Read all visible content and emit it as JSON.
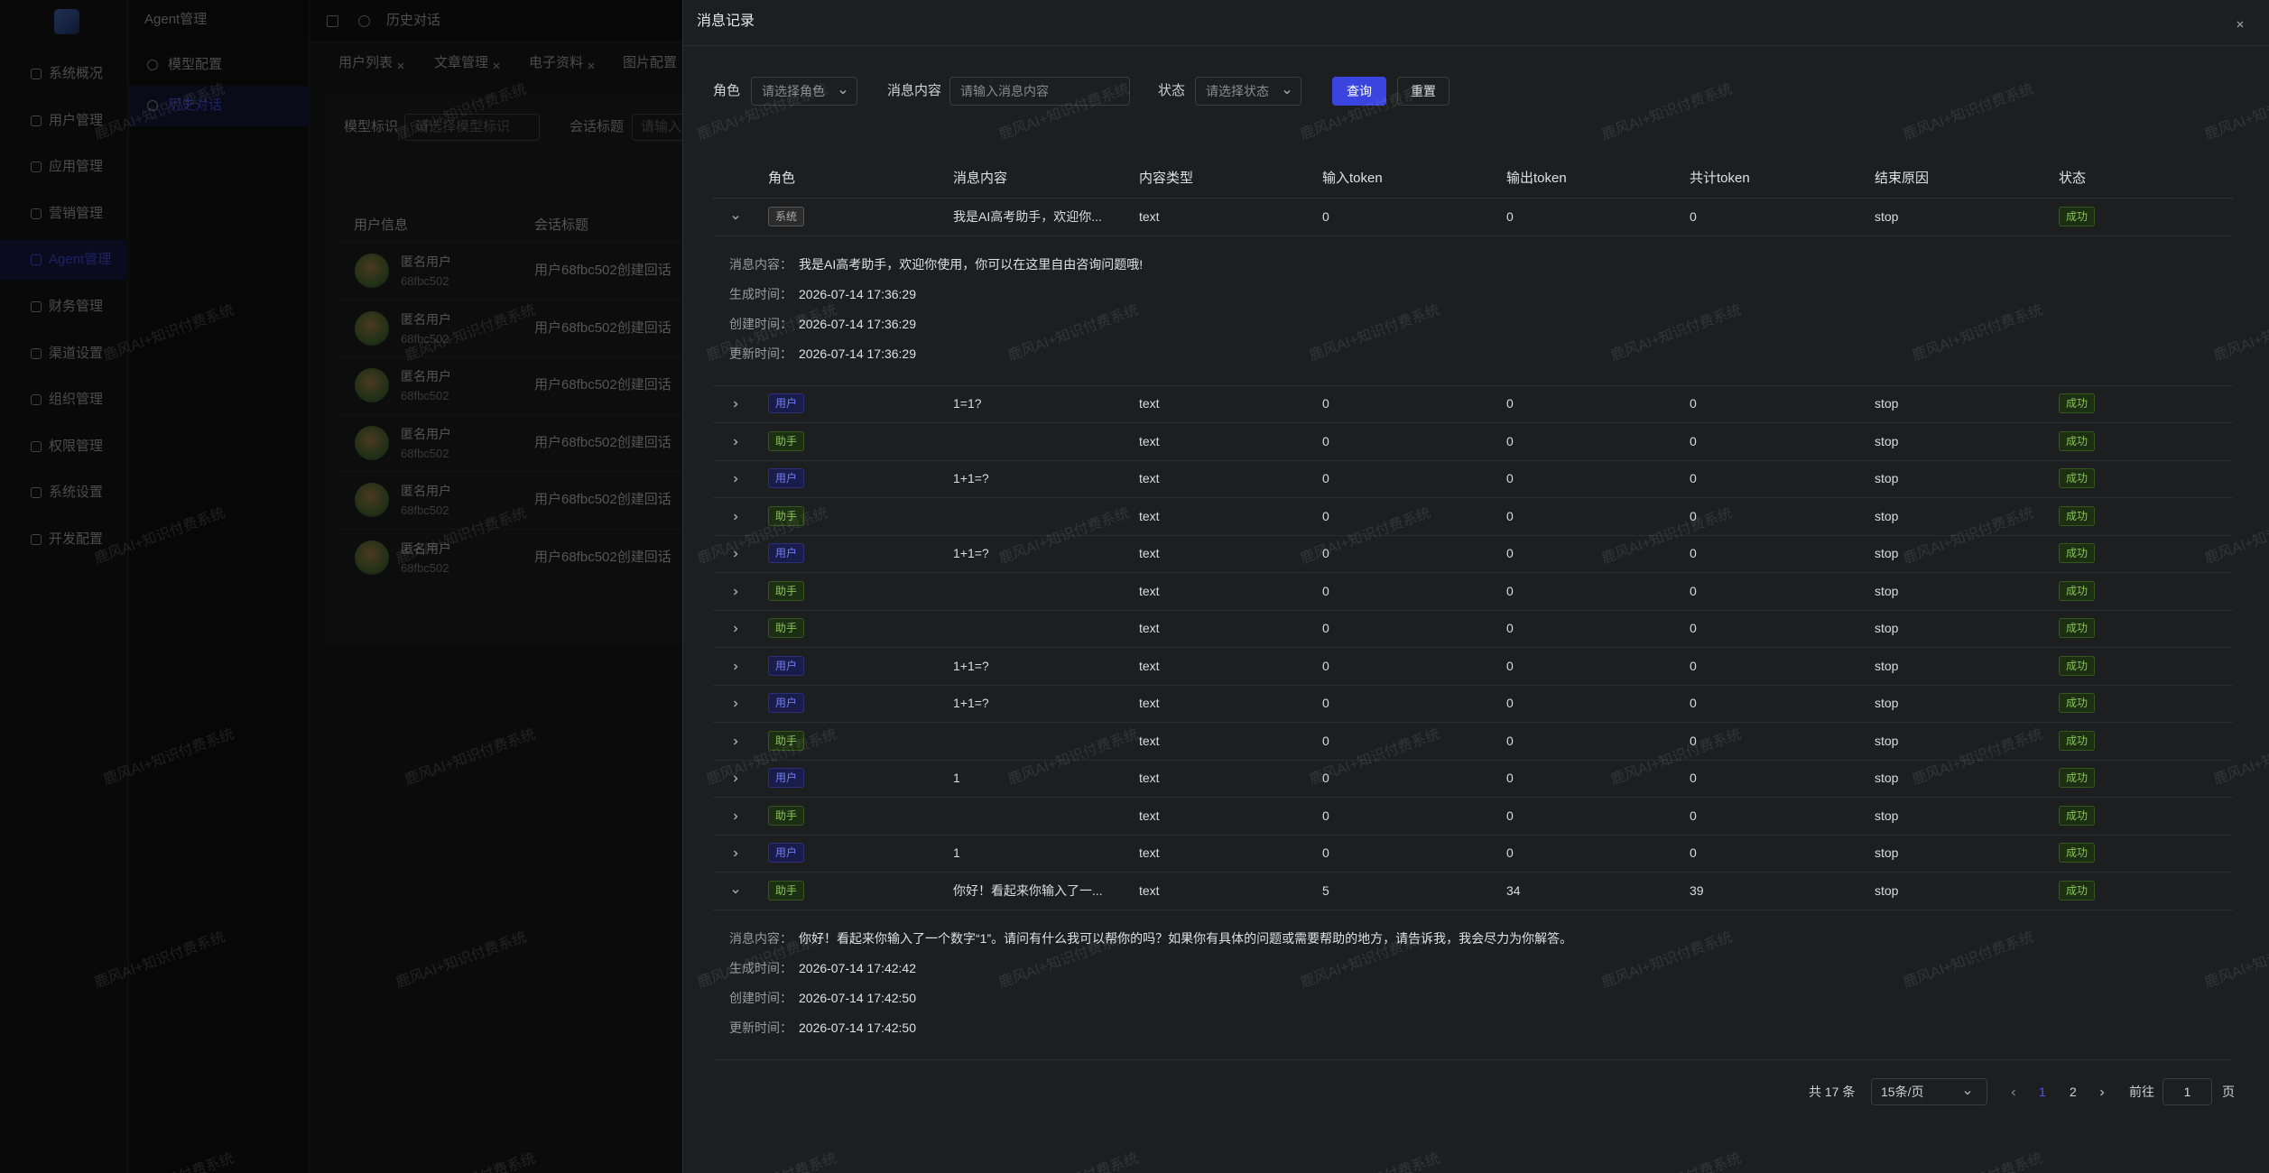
{
  "watermark": "鹿风AI+知识付费系统",
  "sidebar": {
    "menu": [
      "系统概况",
      "用户管理",
      "应用管理",
      "营销管理",
      "Agent管理",
      "财务管理",
      "渠道设置",
      "组织管理",
      "权限管理",
      "系统设置",
      "开发配置"
    ]
  },
  "submenu": {
    "title": "Agent管理",
    "items": [
      "模型配置",
      "历史对话"
    ]
  },
  "topbar": {
    "title": "历史对话"
  },
  "tabs": [
    "用户列表",
    "文章管理",
    "电子资料",
    "图片配置"
  ],
  "background": {
    "filters": [
      {
        "label": "模型标识",
        "placeholder": "请选择模型标识"
      },
      {
        "label": "会话标题",
        "placeholder": "请输入"
      }
    ],
    "columns": [
      "用户信息",
      "会话标题"
    ],
    "rows": [
      {
        "name": "匿名用户",
        "id": "68fbc502",
        "title": "用户68fbc502创建回话"
      },
      {
        "name": "匿名用户",
        "id": "68fbc502",
        "title": "用户68fbc502创建回话"
      },
      {
        "name": "匿名用户",
        "id": "68fbc502",
        "title": "用户68fbc502创建回话"
      },
      {
        "name": "匿名用户",
        "id": "68fbc502",
        "title": "用户68fbc502创建回话"
      },
      {
        "name": "匿名用户",
        "id": "68fbc502",
        "title": "用户68fbc502创建回话"
      },
      {
        "name": "匿名用户",
        "id": "68fbc502",
        "title": "用户68fbc502创建回话"
      }
    ]
  },
  "drawer": {
    "title": "消息记录",
    "filters": [
      {
        "label": "角色",
        "placeholder": "请选择角色"
      },
      {
        "label": "消息内容",
        "placeholder": "请输入消息内容"
      },
      {
        "label": "状态",
        "placeholder": "请选择状态"
      }
    ],
    "buttons": [
      "查询",
      "重置"
    ],
    "columns": [
      "角色",
      "消息内容",
      "内容类型",
      "输入token",
      "输出token",
      "共计token",
      "结束原因",
      "状态"
    ],
    "detail_labels": [
      "消息内容：",
      "生成时间：",
      "创建时间：",
      "更新时间："
    ],
    "rows": [
      {
        "role": "系统",
        "content": "我是AI高考助手，欢迎你...",
        "type": "text",
        "input": 0,
        "output": 0,
        "total": 0,
        "reason": "stop",
        "status": "成功",
        "detail": {
          "content": "我是AI高考助手，欢迎你使用，你可以在这里自由咨询问题哦!",
          "generated": "2026-07-14 17:36:29",
          "created": "2026-07-14 17:36:29",
          "updated": "2026-07-14 17:36:29"
        }
      },
      {
        "role": "用户",
        "content": "1=1?",
        "type": "text",
        "input": 0,
        "output": 0,
        "total": 0,
        "reason": "stop",
        "status": "成功"
      },
      {
        "role": "助手",
        "type": "text",
        "input": 0,
        "output": 0,
        "total": 0,
        "reason": "stop",
        "status": "成功"
      },
      {
        "role": "用户",
        "content": "1+1=?",
        "type": "text",
        "input": 0,
        "output": 0,
        "total": 0,
        "reason": "stop",
        "status": "成功"
      },
      {
        "role": "助手",
        "type": "text",
        "input": 0,
        "output": 0,
        "total": 0,
        "reason": "stop",
        "status": "成功"
      },
      {
        "role": "用户",
        "content": "1+1=?",
        "type": "text",
        "input": 0,
        "output": 0,
        "total": 0,
        "reason": "stop",
        "status": "成功"
      },
      {
        "role": "助手",
        "type": "text",
        "input": 0,
        "output": 0,
        "total": 0,
        "reason": "stop",
        "status": "成功"
      },
      {
        "role": "助手",
        "type": "text",
        "input": 0,
        "output": 0,
        "total": 0,
        "reason": "stop",
        "status": "成功"
      },
      {
        "role": "用户",
        "content": "1+1=?",
        "type": "text",
        "input": 0,
        "output": 0,
        "total": 0,
        "reason": "stop",
        "status": "成功"
      },
      {
        "role": "用户",
        "content": "1+1=?",
        "type": "text",
        "input": 0,
        "output": 0,
        "total": 0,
        "reason": "stop",
        "status": "成功"
      },
      {
        "role": "助手",
        "type": "text",
        "input": 0,
        "output": 0,
        "total": 0,
        "reason": "stop",
        "status": "成功"
      },
      {
        "role": "用户",
        "content": "1",
        "type": "text",
        "input": 0,
        "output": 0,
        "total": 0,
        "reason": "stop",
        "status": "成功"
      },
      {
        "role": "助手",
        "type": "text",
        "input": 0,
        "output": 0,
        "total": 0,
        "reason": "stop",
        "status": "成功"
      },
      {
        "role": "用户",
        "content": "1",
        "type": "text",
        "input": 0,
        "output": 0,
        "total": 0,
        "reason": "stop",
        "status": "成功"
      },
      {
        "role": "助手",
        "content": "你好！看起来你输入了一...",
        "type": "text",
        "input": 5,
        "output": 34,
        "total": 39,
        "reason": "stop",
        "status": "成功",
        "detail": {
          "content": "你好！看起来你输入了一个数字“1”。请问有什么我可以帮你的吗？如果你有具体的问题或需要帮助的地方，请告诉我，我会尽力为你解答。",
          "generated": "2026-07-14 17:42:42",
          "created": "2026-07-14 17:42:50",
          "updated": "2026-07-14 17:42:50"
        }
      }
    ],
    "pagination": {
      "total": "共 17 条",
      "size": "15条/页",
      "pages": [
        "1",
        "2"
      ],
      "goto": "前往",
      "current": "1",
      "unit": "页"
    }
  }
}
